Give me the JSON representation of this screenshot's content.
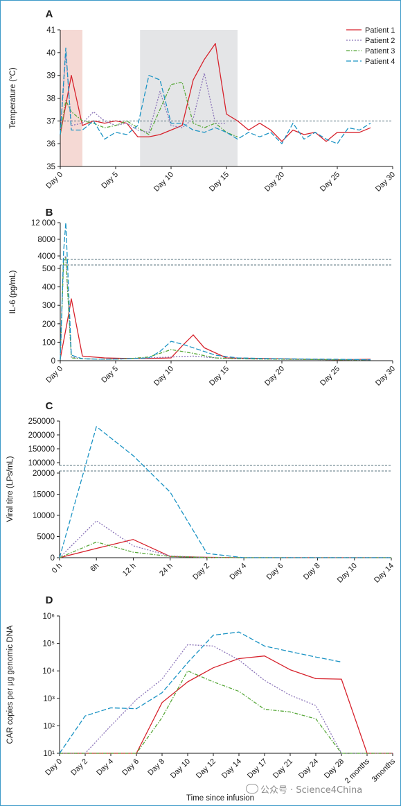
{
  "colors": {
    "Patient 1": "#d7222c",
    "Patient 2": "#8a73b8",
    "Patient 3": "#58a83a",
    "Patient 4": "#1a93c4",
    "axis": "#1a1a1a",
    "dashed_ref": "#55707e",
    "shade_red": "#f5d9d4",
    "shade_gray": "#e4e5e7"
  },
  "legend": [
    "Patient 1",
    "Patient 2",
    "Patient 3",
    "Patient 4"
  ],
  "xlabel_bottom": "Time since infusion",
  "watermark": "公众号 · Science4China",
  "chart_data": [
    {
      "panel": "A",
      "type": "line",
      "ylabel": "Temperature (°C)",
      "ylim": [
        35,
        41
      ],
      "yticks": [
        35,
        36,
        37,
        38,
        39,
        40,
        41
      ],
      "xlim": [
        0,
        30
      ],
      "xticks": [
        0,
        5,
        10,
        15,
        20,
        25,
        30
      ],
      "xtick_labels": [
        "Day 0",
        "Day 5",
        "Day 10",
        "Day 15",
        "Day 20",
        "Day 25",
        "Day 30"
      ],
      "reference_line": 37,
      "shaded_regions": [
        {
          "from": 0,
          "to": 2,
          "color": "shade_red"
        },
        {
          "from": 7.2,
          "to": 16,
          "color": "shade_gray"
        }
      ],
      "series": [
        {
          "name": "Patient 1",
          "style": "solid",
          "x": [
            0,
            1,
            2,
            3,
            4,
            5,
            6,
            7,
            8,
            9,
            10,
            11,
            12,
            13,
            14,
            15,
            16,
            17,
            18,
            19,
            20,
            21,
            22,
            23,
            24,
            25,
            26,
            27,
            28
          ],
          "y": [
            36.4,
            39.0,
            36.8,
            37.0,
            36.9,
            37.0,
            36.9,
            36.3,
            36.3,
            36.4,
            36.6,
            36.8,
            38.8,
            39.7,
            40.4,
            37.3,
            37.0,
            36.6,
            36.9,
            36.6,
            36.1,
            36.6,
            36.4,
            36.5,
            36.1,
            36.5,
            36.5,
            36.5,
            36.7
          ]
        },
        {
          "name": "Patient 2",
          "style": "dotted",
          "x": [
            0,
            0.5,
            1,
            2,
            3,
            4,
            5,
            6,
            7,
            8,
            9,
            10,
            11,
            12,
            13,
            14,
            15
          ],
          "y": [
            36.4,
            40.0,
            36.8,
            36.9,
            37.4,
            37.0,
            36.8,
            36.9,
            36.6,
            36.5,
            38.3,
            36.8,
            36.7,
            37.1,
            39.1,
            36.9,
            36.9
          ]
        },
        {
          "name": "Patient 3",
          "style": "dashdot",
          "x": [
            0,
            0.5,
            1,
            2,
            3,
            4,
            5,
            6,
            7,
            8,
            9,
            10,
            11,
            12,
            13,
            14,
            15,
            16
          ],
          "y": [
            36.4,
            37.9,
            37.4,
            37.0,
            36.9,
            36.7,
            36.8,
            37.0,
            36.7,
            36.4,
            37.5,
            38.6,
            38.7,
            36.9,
            36.7,
            36.9,
            36.5,
            36.3
          ]
        },
        {
          "name": "Patient 4",
          "style": "dashed",
          "x": [
            0,
            0.5,
            1,
            2,
            3,
            4,
            5,
            6,
            7,
            8,
            9,
            10,
            11,
            12,
            13,
            14,
            15,
            16,
            17,
            18,
            19,
            20,
            21,
            22,
            23,
            24,
            25,
            26,
            27,
            28
          ],
          "y": [
            36.4,
            40.2,
            36.6,
            36.6,
            37.0,
            36.2,
            36.5,
            36.4,
            36.8,
            39.0,
            38.8,
            36.9,
            36.9,
            36.6,
            36.5,
            36.7,
            36.5,
            36.2,
            36.5,
            36.3,
            36.5,
            36.0,
            36.9,
            36.2,
            36.5,
            36.2,
            36.0,
            36.7,
            36.6,
            36.9
          ]
        }
      ]
    },
    {
      "panel": "B",
      "type": "line",
      "ylabel": "IL-6 (pg/mL)",
      "ylim_lower": [
        0,
        500
      ],
      "yticks_lower": [
        0,
        100,
        200,
        300,
        400,
        500
      ],
      "ylim_upper": [
        4000,
        12000
      ],
      "yticks_upper": [
        4000,
        8000,
        12000
      ],
      "ytick_labels_upper": [
        "4000",
        "8000",
        "12 000"
      ],
      "xlim": [
        0,
        30
      ],
      "xticks": [
        0,
        5,
        10,
        15,
        20,
        25,
        30
      ],
      "xtick_labels": [
        "Day 0",
        "Day 5",
        "Day 10",
        "Day 15",
        "Day 20",
        "Day 25",
        "Day 30"
      ],
      "series": [
        {
          "name": "Patient 1",
          "style": "solid",
          "x": [
            0,
            0.6,
            1,
            2,
            4,
            6,
            8,
            10,
            11,
            12,
            13,
            15,
            20,
            25,
            28
          ],
          "y": [
            10,
            200,
            335,
            25,
            15,
            12,
            12,
            15,
            80,
            140,
            70,
            15,
            10,
            5,
            8
          ]
        },
        {
          "name": "Patient 2",
          "style": "dotted",
          "x": [
            0,
            0.3,
            0.5,
            1,
            2,
            4,
            6,
            8,
            10,
            12,
            14,
            16,
            20,
            25,
            28
          ],
          "y": [
            5,
            3000,
            4000,
            20,
            10,
            8,
            10,
            15,
            20,
            25,
            15,
            10,
            8,
            5,
            5
          ]
        },
        {
          "name": "Patient 3",
          "style": "dashdot",
          "x": [
            0,
            0.3,
            0.5,
            1,
            2,
            4,
            6,
            8,
            10,
            12,
            14,
            16,
            20,
            25,
            28
          ],
          "y": [
            5,
            2500,
            3500,
            15,
            10,
            8,
            10,
            20,
            60,
            40,
            15,
            10,
            8,
            5,
            5
          ]
        },
        {
          "name": "Patient 4",
          "style": "dashed",
          "x": [
            0,
            0.3,
            0.5,
            1,
            2,
            4,
            6,
            8,
            9,
            10,
            11,
            12,
            13,
            14,
            16,
            20,
            25,
            28
          ],
          "y": [
            5,
            5000,
            12000,
            30,
            10,
            8,
            10,
            15,
            50,
            105,
            90,
            70,
            50,
            30,
            15,
            10,
            8,
            5
          ]
        }
      ]
    },
    {
      "panel": "C",
      "type": "line",
      "ylabel": "Viral titre (LPs/mL)",
      "ylim_lower": [
        0,
        20000
      ],
      "yticks_lower": [
        0,
        5000,
        10000,
        15000,
        20000
      ],
      "ylim_upper": [
        100000,
        250000
      ],
      "yticks_upper": [
        100000,
        150000,
        200000,
        250000
      ],
      "categories": [
        "0 h",
        "6h",
        "12 h",
        "24 h",
        "Day 2",
        "Day 4",
        "Day 6",
        "Day 8",
        "Day 10",
        "Day 14"
      ],
      "series": [
        {
          "name": "Patient 1",
          "style": "solid",
          "values": [
            0,
            2200,
            4300,
            300,
            100,
            0,
            0,
            0,
            0,
            0
          ]
        },
        {
          "name": "Patient 2",
          "style": "dotted",
          "values": [
            0,
            8700,
            2800,
            400,
            50,
            0,
            0,
            0,
            0,
            0
          ]
        },
        {
          "name": "Patient 3",
          "style": "dashdot",
          "values": [
            0,
            3700,
            1300,
            300,
            50,
            0,
            0,
            0,
            0,
            0
          ]
        },
        {
          "name": "Patient 4",
          "style": "dashed",
          "values": [
            0,
            230000,
            125000,
            15500,
            1000,
            0,
            0,
            0,
            0,
            0
          ]
        }
      ]
    },
    {
      "panel": "D",
      "type": "line",
      "yscale": "log",
      "ylabel": "CAR copies per μg genomic DNA",
      "ylim": [
        10,
        1000000
      ],
      "ytick_labels": [
        "10¹",
        "10²",
        "10³",
        "10⁴",
        "10⁵",
        "10⁶"
      ],
      "xlabel": "Time since infusion",
      "categories": [
        "Day 0",
        "Day 2",
        "Day 4",
        "Day 6",
        "Day 8",
        "Day 10",
        "Day 12",
        "Day 14",
        "Day 17",
        "Day 21",
        "Day 24",
        "Day 28",
        "2 months",
        "3months"
      ],
      "series": [
        {
          "name": "Patient 1",
          "style": "solid",
          "values": [
            10,
            10,
            10,
            10,
            700,
            4000,
            13000,
            28000,
            35000,
            11000,
            5200,
            5000,
            10,
            10
          ]
        },
        {
          "name": "Patient 2",
          "style": "dotted",
          "values": [
            10,
            10,
            100,
            900,
            5000,
            90000,
            80000,
            25000,
            4500,
            1300,
            550,
            10,
            10,
            10
          ]
        },
        {
          "name": "Patient 3",
          "style": "dashdot",
          "values": [
            10,
            10,
            10,
            10,
            200,
            10000,
            4000,
            1800,
            400,
            320,
            180,
            10,
            10,
            10
          ]
        },
        {
          "name": "Patient 4",
          "style": "dashed",
          "values": [
            10,
            230,
            450,
            420,
            1600,
            20000,
            200000,
            260000,
            80000,
            50000,
            32000,
            21000,
            null,
            null
          ]
        }
      ]
    }
  ]
}
